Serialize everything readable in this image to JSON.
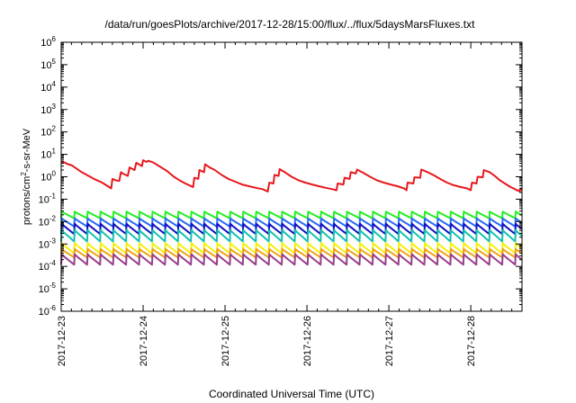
{
  "chart_data": {
    "type": "line",
    "title": "/data/run/goesPlots/archive/2017-12-28/15:00/flux/../flux/5daysMarsFluxes.txt",
    "xlabel": "Coordinated Universal Time (UTC)",
    "ylabel": {
      "base": "protons/cm",
      "sup": "2",
      "rest": "-s-sr-MeV"
    },
    "y_scale": "log",
    "ylim": [
      1e-06,
      1000000.0
    ],
    "y_ticks": [
      {
        "value": 1e-06,
        "base": "10",
        "exp": "-6"
      },
      {
        "value": 1e-05,
        "base": "10",
        "exp": "-5"
      },
      {
        "value": 0.0001,
        "base": "10",
        "exp": "-4"
      },
      {
        "value": 0.001,
        "base": "10",
        "exp": "-3"
      },
      {
        "value": 0.01,
        "base": "10",
        "exp": "-2"
      },
      {
        "value": 0.1,
        "base": "10",
        "exp": "-1"
      },
      {
        "value": 1,
        "base": "10",
        "exp": "0"
      },
      {
        "value": 10,
        "base": "10",
        "exp": "1"
      },
      {
        "value": 100,
        "base": "10",
        "exp": "2"
      },
      {
        "value": 1000,
        "base": "10",
        "exp": "3"
      },
      {
        "value": 10000.0,
        "base": "10",
        "exp": "4"
      },
      {
        "value": 100000.0,
        "base": "10",
        "exp": "5"
      },
      {
        "value": 1000000.0,
        "base": "10",
        "exp": "6"
      }
    ],
    "xlim": [
      "2017-12-23 00:00",
      "2017-12-28 15:00"
    ],
    "x_ticks": [
      "2017-12-23",
      "2017-12-24",
      "2017-12-25",
      "2017-12-26",
      "2017-12-27",
      "2017-12-28"
    ],
    "grid": false,
    "legend": "none",
    "series": [
      {
        "color": "#e8171c",
        "points": [
          [
            "2017-12-23 00:00",
            4.8
          ],
          [
            "2017-12-23 01:00",
            4.3
          ],
          [
            "2017-12-23 02:00",
            3.6
          ],
          [
            "2017-12-23 03:00",
            3.3
          ],
          [
            "2017-12-23 04:00",
            2.6
          ],
          [
            "2017-12-23 06:00",
            1.6
          ],
          [
            "2017-12-23 08:00",
            1.1
          ],
          [
            "2017-12-23 10:00",
            0.75
          ],
          [
            "2017-12-23 12:00",
            0.55
          ],
          [
            "2017-12-23 14:00",
            0.35
          ],
          [
            "2017-12-23 14:40",
            0.3
          ],
          [
            "2017-12-23 15:00",
            0.8
          ],
          [
            "2017-12-23 16:00",
            0.7
          ],
          [
            "2017-12-23 17:00",
            0.65
          ],
          [
            "2017-12-23 17:30",
            1.6
          ],
          [
            "2017-12-23 18:00",
            1.4
          ],
          [
            "2017-12-23 19:30",
            1.1
          ],
          [
            "2017-12-23 20:00",
            2.6
          ],
          [
            "2017-12-23 21:30",
            2.0
          ],
          [
            "2017-12-23 22:00",
            4.2
          ],
          [
            "2017-12-23 23:40",
            3.0
          ],
          [
            "2017-12-24 00:00",
            5.5
          ],
          [
            "2017-12-24 01:00",
            4.6
          ],
          [
            "2017-12-24 01:30",
            5.2
          ],
          [
            "2017-12-24 03:00",
            4.3
          ],
          [
            "2017-12-24 05:00",
            2.8
          ],
          [
            "2017-12-24 07:00",
            1.8
          ],
          [
            "2017-12-24 09:00",
            1.0
          ],
          [
            "2017-12-24 11:00",
            0.65
          ],
          [
            "2017-12-24 13:00",
            0.45
          ],
          [
            "2017-12-24 14:40",
            0.35
          ],
          [
            "2017-12-24 15:00",
            0.9
          ],
          [
            "2017-12-24 16:10",
            0.8
          ],
          [
            "2017-12-24 16:30",
            2.0
          ],
          [
            "2017-12-24 17:50",
            1.6
          ],
          [
            "2017-12-24 18:10",
            3.6
          ],
          [
            "2017-12-24 19:30",
            2.6
          ],
          [
            "2017-12-24 21:00",
            2.0
          ],
          [
            "2017-12-24 23:00",
            1.2
          ],
          [
            "2017-12-25 01:00",
            0.8
          ],
          [
            "2017-12-25 03:00",
            0.6
          ],
          [
            "2017-12-25 05:00",
            0.45
          ],
          [
            "2017-12-25 07:00",
            0.38
          ],
          [
            "2017-12-25 09:00",
            0.32
          ],
          [
            "2017-12-25 11:00",
            0.28
          ],
          [
            "2017-12-25 12:30",
            0.22
          ],
          [
            "2017-12-25 13:00",
            0.55
          ],
          [
            "2017-12-25 14:10",
            0.5
          ],
          [
            "2017-12-25 14:30",
            1.2
          ],
          [
            "2017-12-25 15:40",
            1.1
          ],
          [
            "2017-12-25 16:00",
            2.2
          ],
          [
            "2017-12-25 17:30",
            1.6
          ],
          [
            "2017-12-25 19:30",
            1.0
          ],
          [
            "2017-12-25 21:30",
            0.7
          ],
          [
            "2017-12-25 23:30",
            0.55
          ],
          [
            "2017-12-26 01:30",
            0.45
          ],
          [
            "2017-12-26 03:30",
            0.38
          ],
          [
            "2017-12-26 05:30",
            0.32
          ],
          [
            "2017-12-26 07:30",
            0.28
          ],
          [
            "2017-12-26 08:40",
            0.25
          ],
          [
            "2017-12-26 09:00",
            0.5
          ],
          [
            "2017-12-26 10:40",
            0.45
          ],
          [
            "2017-12-26 11:00",
            0.9
          ],
          [
            "2017-12-26 12:30",
            0.8
          ],
          [
            "2017-12-26 12:50",
            1.6
          ],
          [
            "2017-12-26 14:20",
            1.4
          ],
          [
            "2017-12-26 14:40",
            2.1
          ],
          [
            "2017-12-26 16:30",
            1.5
          ],
          [
            "2017-12-26 18:30",
            1.0
          ],
          [
            "2017-12-26 20:30",
            0.7
          ],
          [
            "2017-12-26 22:30",
            0.55
          ],
          [
            "2017-12-27 00:30",
            0.45
          ],
          [
            "2017-12-27 02:30",
            0.38
          ],
          [
            "2017-12-27 04:30",
            0.3
          ],
          [
            "2017-12-27 05:10",
            0.25
          ],
          [
            "2017-12-27 05:30",
            0.55
          ],
          [
            "2017-12-27 07:10",
            0.5
          ],
          [
            "2017-12-27 07:30",
            0.95
          ],
          [
            "2017-12-27 09:10",
            0.9
          ],
          [
            "2017-12-27 09:30",
            2.1
          ],
          [
            "2017-12-27 11:00",
            1.7
          ],
          [
            "2017-12-27 13:00",
            1.2
          ],
          [
            "2017-12-27 15:00",
            0.8
          ],
          [
            "2017-12-27 17:00",
            0.55
          ],
          [
            "2017-12-27 19:00",
            0.42
          ],
          [
            "2017-12-27 21:00",
            0.35
          ],
          [
            "2017-12-27 23:00",
            0.3
          ],
          [
            "2017-12-28 00:00",
            0.25
          ],
          [
            "2017-12-28 00:20",
            0.55
          ],
          [
            "2017-12-28 01:40",
            0.5
          ],
          [
            "2017-12-28 02:00",
            1.0
          ],
          [
            "2017-12-28 03:30",
            0.95
          ],
          [
            "2017-12-28 03:50",
            2.0
          ],
          [
            "2017-12-28 05:30",
            1.6
          ],
          [
            "2017-12-28 07:00",
            1.1
          ],
          [
            "2017-12-28 08:30",
            0.7
          ],
          [
            "2017-12-28 10:00",
            0.5
          ],
          [
            "2017-12-28 11:30",
            0.36
          ],
          [
            "2017-12-28 13:00",
            0.28
          ],
          [
            "2017-12-28 13:40",
            0.24
          ],
          [
            "2017-12-28 14:00",
            0.25
          ],
          [
            "2017-12-28 14:20",
            0.22
          ],
          [
            "2017-12-28 14:40",
            0.3
          ],
          [
            "2017-12-28 15:00",
            0.25
          ]
        ]
      },
      {
        "color": "#22ee22",
        "low": 0.014,
        "high": 0.028,
        "rise_every_hours": 3.8
      },
      {
        "color": "#2a6cf2",
        "low": 0.006,
        "high": 0.014,
        "rise_every_hours": 3.8
      },
      {
        "color": "#1111c4",
        "low": 0.0028,
        "high": 0.008,
        "rise_every_hours": 3.8
      },
      {
        "color": "#17c0b0",
        "low": 0.0013,
        "high": 0.0042,
        "rise_every_hours": 3.8
      },
      {
        "color": "#f4ef0c",
        "low": 0.00038,
        "high": 0.0011,
        "rise_every_hours": 3.8
      },
      {
        "color": "#f0a012",
        "low": 0.00025,
        "high": 0.0006,
        "rise_every_hours": 3.8
      },
      {
        "color": "#983e8a",
        "low": 0.00012,
        "high": 0.00035,
        "rise_every_hours": 3.8
      }
    ]
  }
}
